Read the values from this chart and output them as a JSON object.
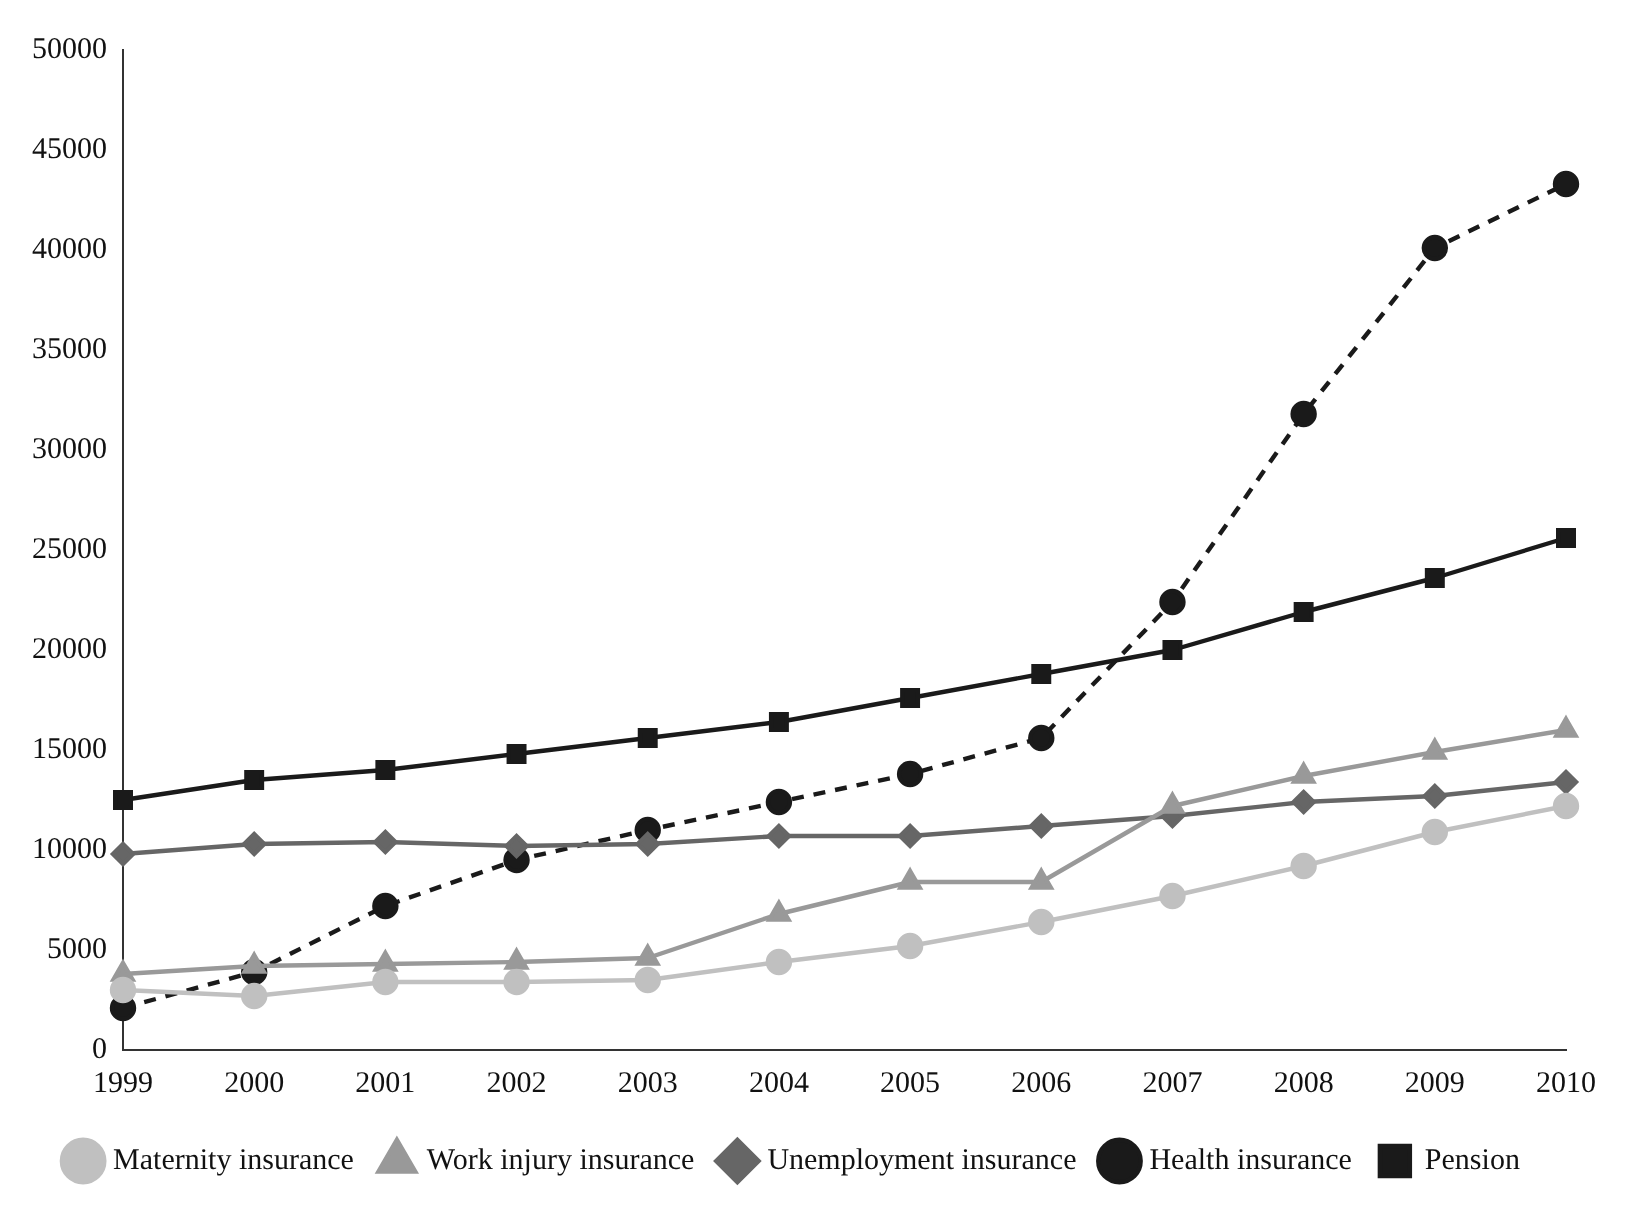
{
  "chart_data": {
    "type": "line",
    "categories": [
      "1999",
      "2000",
      "2001",
      "2002",
      "2003",
      "2004",
      "2005",
      "2006",
      "2007",
      "2008",
      "2009",
      "2010"
    ],
    "ylim": [
      0,
      50000
    ],
    "yticks": [
      0,
      5000,
      10000,
      15000,
      20000,
      25000,
      30000,
      35000,
      40000,
      45000,
      50000
    ],
    "grid": false,
    "legend": "bottom",
    "series": [
      {
        "name": "Pension",
        "color": "#1a1a1a",
        "marker": "square",
        "line_style": "solid",
        "values": [
          12500,
          13500,
          14000,
          14800,
          15600,
          16400,
          17600,
          18800,
          20000,
          21900,
          23600,
          25600
        ]
      },
      {
        "name": "Health insurance",
        "color": "#1a1a1a",
        "marker": "circle",
        "line_style": "dashed",
        "values": [
          2100,
          3900,
          7200,
          9500,
          11000,
          12400,
          13800,
          15600,
          22400,
          31800,
          40100,
          43300
        ]
      },
      {
        "name": "Unemployment insurance",
        "color": "#666666",
        "marker": "diamond",
        "line_style": "solid",
        "values": [
          9800,
          10300,
          10400,
          10200,
          10300,
          10700,
          10700,
          11200,
          11700,
          12400,
          12700,
          13400
        ]
      },
      {
        "name": "Work injury insurance",
        "color": "#999999",
        "marker": "triangle",
        "line_style": "solid",
        "values": [
          3800,
          4200,
          4300,
          4400,
          4600,
          6800,
          8400,
          8400,
          12200,
          13700,
          14900,
          16000
        ]
      },
      {
        "name": "Maternity insurance",
        "color": "#c0c0c0",
        "marker": "circle",
        "line_style": "solid",
        "values": [
          3000,
          2700,
          3400,
          3400,
          3500,
          4400,
          5200,
          6400,
          7700,
          9200,
          10900,
          12200
        ]
      }
    ]
  }
}
